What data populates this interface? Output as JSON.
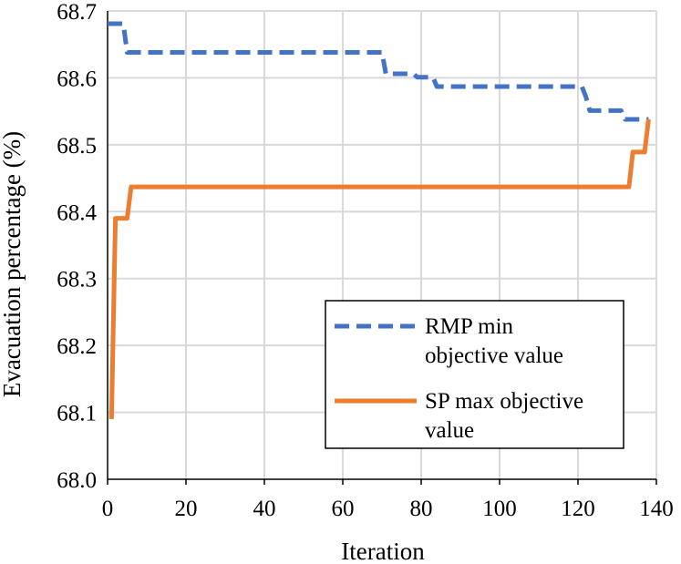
{
  "chart_data": {
    "type": "line",
    "title": "",
    "xlabel": "Iteration",
    "ylabel": "Evacuation percentage (%)",
    "xlim": [
      0,
      140
    ],
    "ylim": [
      68.0,
      68.7
    ],
    "xticks": [
      "0",
      "20",
      "40",
      "60",
      "80",
      "100",
      "120",
      "140"
    ],
    "yticks": [
      "68.0",
      "68.1",
      "68.2",
      "68.3",
      "68.4",
      "68.5",
      "68.6",
      "68.7"
    ],
    "grid": true,
    "legend_position": "bottom-right",
    "series": [
      {
        "name_lines": [
          "RMP min",
          "objective value"
        ],
        "color": "#4472C4",
        "style": "dashed",
        "x": [
          0,
          4,
          5,
          70,
          71,
          78,
          79,
          83,
          84,
          121,
          122,
          123,
          131,
          132,
          138
        ],
        "y": [
          68.681,
          68.681,
          68.638,
          68.638,
          68.606,
          68.606,
          68.601,
          68.601,
          68.587,
          68.587,
          68.572,
          68.551,
          68.551,
          68.538,
          68.538
        ]
      },
      {
        "name_lines": [
          "SP max objective",
          "value"
        ],
        "color": "#ED7D31",
        "style": "solid",
        "x": [
          1,
          2,
          5,
          6,
          133,
          134,
          137,
          138
        ],
        "y": [
          68.09,
          68.39,
          68.39,
          68.437,
          68.437,
          68.489,
          68.489,
          68.538
        ]
      }
    ]
  }
}
